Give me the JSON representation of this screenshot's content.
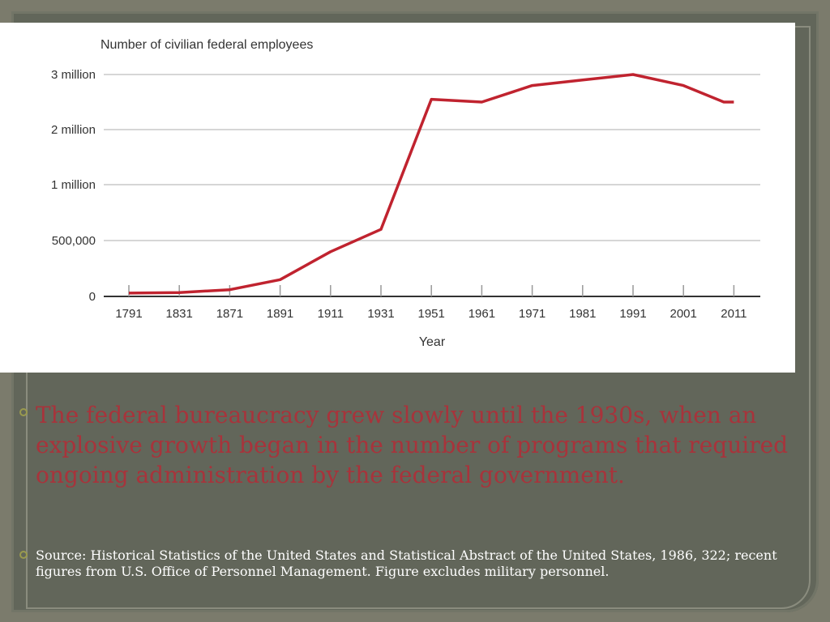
{
  "colors": {
    "background": "#62665a",
    "line": "#c0232f",
    "heading_text": "#a8333b",
    "source_text": "#ffffff"
  },
  "chart_data": {
    "type": "line",
    "title": "Number of civilian federal employees",
    "xlabel": "Year",
    "ylabel": "",
    "x_ticks": [
      "1791",
      "1831",
      "1871",
      "1891",
      "1911",
      "1931",
      "1951",
      "1961",
      "1971",
      "1981",
      "1991",
      "2001",
      "2011"
    ],
    "y_ticks": [
      {
        "label": "0",
        "value": 0
      },
      {
        "label": "500,000",
        "value": 500000
      },
      {
        "label": "1 million",
        "value": 1000000
      },
      {
        "label": "2 million",
        "value": 2000000
      },
      {
        "label": "3 million",
        "value": 3000000
      }
    ],
    "grid": true,
    "series": [
      {
        "points": [
          {
            "x": 1791,
            "y": 30000
          },
          {
            "x": 1831,
            "y": 35000
          },
          {
            "x": 1871,
            "y": 60000
          },
          {
            "x": 1891,
            "y": 150000
          },
          {
            "x": 1911,
            "y": 400000
          },
          {
            "x": 1931,
            "y": 600000
          },
          {
            "x": 1951,
            "y": 2550000
          },
          {
            "x": 1961,
            "y": 2500000
          },
          {
            "x": 1971,
            "y": 2800000
          },
          {
            "x": 1981,
            "y": 2900000
          },
          {
            "x": 1991,
            "y": 3000000
          },
          {
            "x": 2001,
            "y": 2800000
          },
          {
            "x": 2009,
            "y": 2500000
          },
          {
            "x": 2011,
            "y": 2500000
          }
        ]
      }
    ]
  },
  "content": {
    "main_text": "The federal bureaucracy grew slowly until the 1930s, when an explosive growth began in the number of programs that required ongoing administration by the federal government.",
    "source_text": "Source: Historical Statistics of the United States and Statistical Abstract of the United States, 1986, 322; recent figures from U.S. Office of Personnel Management. Figure excludes military personnel."
  }
}
